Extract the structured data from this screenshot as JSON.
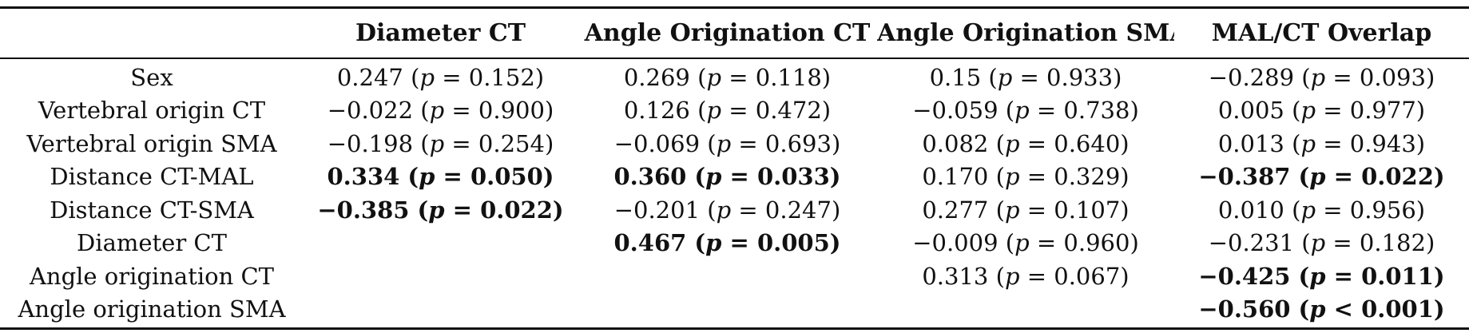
{
  "table": {
    "headers": [
      "",
      "Diameter CT",
      "Angle Origination CT",
      "Angle Origination SMA",
      "MAL/CT Overlap"
    ],
    "rows": [
      {
        "label": "Sex",
        "cells": [
          {
            "coef": "0.247",
            "op": "=",
            "p": "0.152",
            "bold": false
          },
          {
            "coef": "0.269",
            "op": "=",
            "p": "0.118",
            "bold": false
          },
          {
            "coef": "0.15",
            "op": "=",
            "p": "0.933",
            "bold": false
          },
          {
            "coef": "−0.289",
            "op": "=",
            "p": "0.093",
            "bold": false
          }
        ]
      },
      {
        "label": "Vertebral origin CT",
        "cells": [
          {
            "coef": "−0.022",
            "op": "=",
            "p": "0.900",
            "bold": false
          },
          {
            "coef": "0.126",
            "op": "=",
            "p": "0.472",
            "bold": false
          },
          {
            "coef": "−0.059",
            "op": "=",
            "p": "0.738",
            "bold": false
          },
          {
            "coef": "0.005",
            "op": "=",
            "p": "0.977",
            "bold": false
          }
        ]
      },
      {
        "label": "Vertebral origin SMA",
        "cells": [
          {
            "coef": "−0.198",
            "op": "=",
            "p": "0.254",
            "bold": false
          },
          {
            "coef": "−0.069",
            "op": "=",
            "p": "0.693",
            "bold": false
          },
          {
            "coef": "0.082",
            "op": "=",
            "p": "0.640",
            "bold": false
          },
          {
            "coef": "0.013",
            "op": "=",
            "p": "0.943",
            "bold": false
          }
        ]
      },
      {
        "label": "Distance CT-MAL",
        "cells": [
          {
            "coef": "0.334",
            "op": "=",
            "p": "0.050",
            "bold": true
          },
          {
            "coef": "0.360",
            "op": "=",
            "p": "0.033",
            "bold": true
          },
          {
            "coef": "0.170",
            "op": "=",
            "p": "0.329",
            "bold": false
          },
          {
            "coef": "−0.387",
            "op": "=",
            "p": "0.022",
            "bold": true
          }
        ]
      },
      {
        "label": "Distance CT-SMA",
        "cells": [
          {
            "coef": "−0.385",
            "op": "=",
            "p": "0.022",
            "bold": true
          },
          {
            "coef": "−0.201",
            "op": "=",
            "p": "0.247",
            "bold": false
          },
          {
            "coef": "0.277",
            "op": "=",
            "p": "0.107",
            "bold": false
          },
          {
            "coef": "0.010",
            "op": "=",
            "p": "0.956",
            "bold": false
          }
        ]
      },
      {
        "label": "Diameter CT",
        "cells": [
          null,
          {
            "coef": "0.467",
            "op": "=",
            "p": "0.005",
            "bold": true
          },
          {
            "coef": "−0.009",
            "op": "=",
            "p": "0.960",
            "bold": false
          },
          {
            "coef": "−0.231",
            "op": "=",
            "p": "0.182",
            "bold": false
          }
        ]
      },
      {
        "label": "Angle origination CT",
        "cells": [
          null,
          null,
          {
            "coef": "0.313",
            "op": "=",
            "p": "0.067",
            "bold": false
          },
          {
            "coef": "−0.425",
            "op": "=",
            "p": "0.011",
            "bold": true
          }
        ]
      },
      {
        "label": "Angle origination SMA",
        "cells": [
          null,
          null,
          null,
          {
            "coef": "−0.560",
            "op": "<",
            "p": "0.001",
            "bold": true
          }
        ]
      }
    ]
  }
}
